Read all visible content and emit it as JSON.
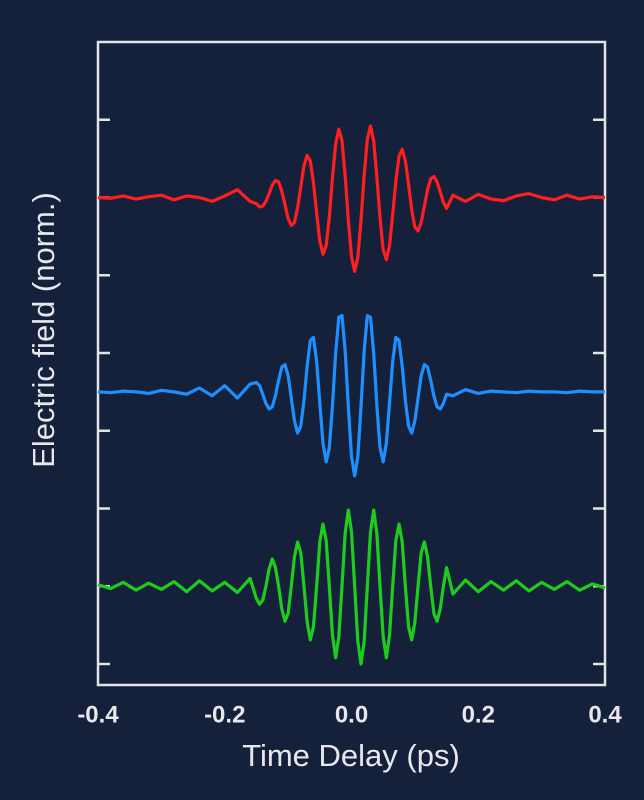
{
  "chart_data": {
    "type": "line",
    "xlabel": "Time Delay (ps)",
    "ylabel": "Electric field (norm.)",
    "x": [
      -0.4,
      -0.38,
      -0.36,
      -0.34,
      -0.32,
      -0.3,
      -0.28,
      -0.26,
      -0.24,
      -0.22,
      -0.2,
      -0.18,
      -0.16,
      -0.15,
      -0.145,
      -0.14,
      -0.135,
      -0.13,
      -0.125,
      -0.12,
      -0.115,
      -0.11,
      -0.105,
      -0.1,
      -0.095,
      -0.09,
      -0.085,
      -0.08,
      -0.075,
      -0.07,
      -0.065,
      -0.06,
      -0.055,
      -0.05,
      -0.045,
      -0.04,
      -0.035,
      -0.03,
      -0.025,
      -0.02,
      -0.015,
      -0.01,
      -0.005,
      0,
      0.005,
      0.01,
      0.015,
      0.02,
      0.025,
      0.03,
      0.035,
      0.04,
      0.045,
      0.05,
      0.055,
      0.06,
      0.065,
      0.07,
      0.075,
      0.08,
      0.085,
      0.09,
      0.095,
      0.1,
      0.105,
      0.11,
      0.115,
      0.12,
      0.125,
      0.13,
      0.135,
      0.14,
      0.145,
      0.15,
      0.16,
      0.18,
      0.2,
      0.22,
      0.24,
      0.26,
      0.28,
      0.3,
      0.32,
      0.34,
      0.36,
      0.38,
      0.4
    ],
    "series": [
      {
        "color": "#ff1f1f",
        "values": [
          6.0,
          5.99,
          6.02,
          5.98,
          6.01,
          6.03,
          5.97,
          6.02,
          6.0,
          5.95,
          6.02,
          6.1,
          5.95,
          5.92,
          5.88,
          5.89,
          5.95,
          6.05,
          6.16,
          6.22,
          6.2,
          6.08,
          5.91,
          5.73,
          5.64,
          5.68,
          5.87,
          6.14,
          6.41,
          6.54,
          6.47,
          6.19,
          5.8,
          5.44,
          5.27,
          5.38,
          5.75,
          6.26,
          6.69,
          6.88,
          6.73,
          6.28,
          5.71,
          5.24,
          5.05,
          5.23,
          5.71,
          6.29,
          6.75,
          6.92,
          6.73,
          6.27,
          5.74,
          5.33,
          5.2,
          5.38,
          5.78,
          6.21,
          6.53,
          6.62,
          6.47,
          6.17,
          5.84,
          5.62,
          5.57,
          5.68,
          5.89,
          6.1,
          6.24,
          6.27,
          6.2,
          6.07,
          5.94,
          5.86,
          6.03,
          5.95,
          6.04,
          5.98,
          5.96,
          6.02,
          6.05,
          6.0,
          5.97,
          6.03,
          5.98,
          6.01,
          6.0
        ]
      },
      {
        "color": "#1e8fff",
        "values": [
          3.5,
          3.49,
          3.51,
          3.5,
          3.48,
          3.52,
          3.5,
          3.47,
          3.55,
          3.45,
          3.58,
          3.42,
          3.6,
          3.62,
          3.58,
          3.47,
          3.35,
          3.28,
          3.31,
          3.45,
          3.65,
          3.82,
          3.85,
          3.71,
          3.42,
          3.13,
          2.97,
          3.06,
          3.39,
          3.83,
          4.16,
          4.2,
          3.89,
          3.36,
          2.84,
          2.6,
          2.78,
          3.33,
          4.0,
          4.46,
          4.48,
          4.03,
          3.31,
          2.67,
          2.42,
          2.67,
          3.31,
          4.03,
          4.48,
          4.46,
          4.0,
          3.33,
          2.78,
          2.6,
          2.84,
          3.36,
          3.89,
          4.2,
          4.16,
          3.83,
          3.39,
          3.06,
          2.97,
          3.13,
          3.42,
          3.71,
          3.85,
          3.82,
          3.65,
          3.45,
          3.31,
          3.28,
          3.35,
          3.47,
          3.45,
          3.53,
          3.48,
          3.51,
          3.5,
          3.49,
          3.51,
          3.5,
          3.5,
          3.49,
          3.51,
          3.5,
          3.5
        ]
      },
      {
        "color": "#1ecc1e",
        "values": [
          1.02,
          0.97,
          1.05,
          0.95,
          1.04,
          0.96,
          1.06,
          0.93,
          1.07,
          0.94,
          1.05,
          0.92,
          1.1,
          0.84,
          0.77,
          0.82,
          1.0,
          1.22,
          1.35,
          1.24,
          1.0,
          0.71,
          0.55,
          0.65,
          1.0,
          1.38,
          1.57,
          1.43,
          1.0,
          0.54,
          0.31,
          0.48,
          1.0,
          1.57,
          1.8,
          1.59,
          1.0,
          0.37,
          0.08,
          0.35,
          1.0,
          1.68,
          1.98,
          1.7,
          1.0,
          0.29,
          0.0,
          0.29,
          1.0,
          1.7,
          1.98,
          1.68,
          1.0,
          0.35,
          0.08,
          0.37,
          1.0,
          1.59,
          1.8,
          1.57,
          1.0,
          0.48,
          0.31,
          0.54,
          1.0,
          1.43,
          1.57,
          1.38,
          1.0,
          0.65,
          0.55,
          0.71,
          1.0,
          1.24,
          0.9,
          1.08,
          0.93,
          1.06,
          0.95,
          1.07,
          0.94,
          1.05,
          0.96,
          1.06,
          0.95,
          1.03,
          0.98
        ]
      }
    ],
    "xlim": [
      -0.4,
      0.4
    ],
    "xticks": [
      -0.4,
      -0.2,
      {
        "value": 0,
        "label": "0.0"
      },
      0.2,
      0.4
    ],
    "ylim": [
      -0.27,
      8.0
    ],
    "yticks": [
      0,
      1,
      2,
      3,
      4,
      5,
      6,
      7
    ]
  }
}
